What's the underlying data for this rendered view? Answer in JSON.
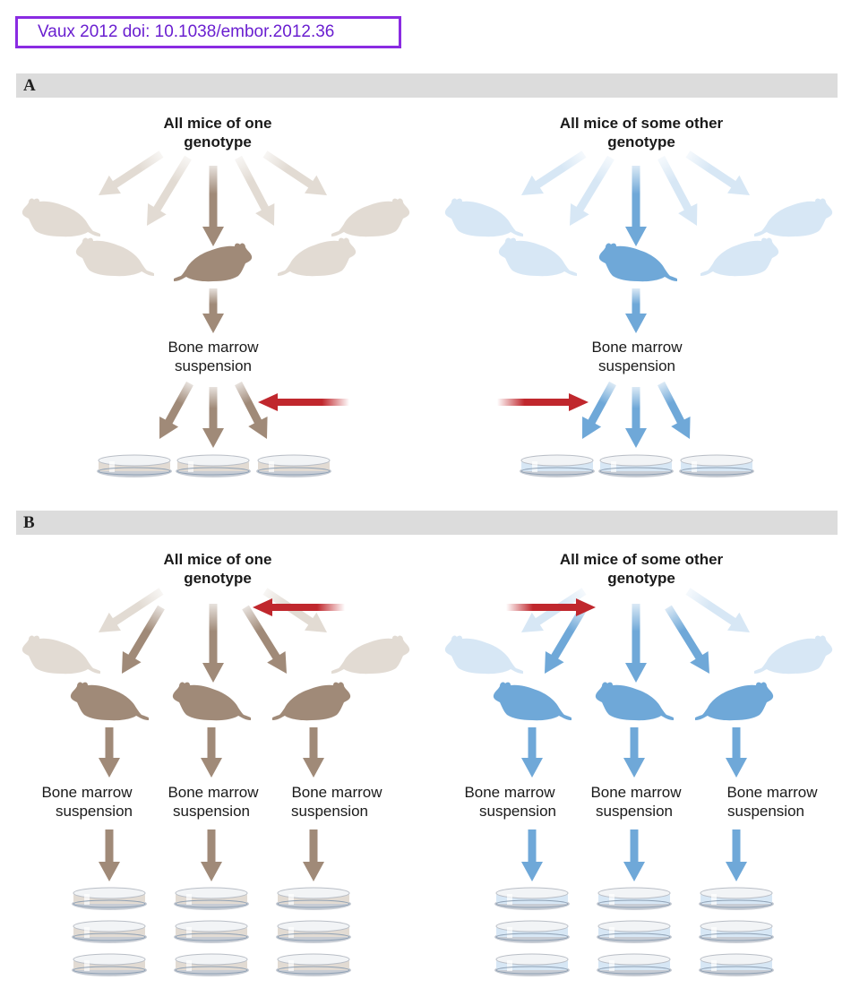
{
  "citation": "Vaux 2012 doi: 10.1038/embor.2012.36",
  "panels": [
    {
      "letter": "A",
      "left_header": [
        "All mice of one",
        "genotype"
      ],
      "right_header": [
        "All mice of some other",
        "genotype"
      ],
      "left_suspension": [
        "Bone marrow",
        "suspension"
      ],
      "right_suspension": [
        "Bone marrow",
        "suspension"
      ]
    },
    {
      "letter": "B",
      "left_header": [
        "All mice of one",
        "genotype"
      ],
      "right_header": [
        "All mice of some other",
        "genotype"
      ],
      "left_suspensions": [
        [
          "Bone marrow",
          "suspension"
        ],
        [
          "Bone marrow",
          "suspension"
        ],
        [
          "Bone marrow",
          "suspension"
        ]
      ],
      "right_suspensions": [
        [
          "Bone marrow",
          "suspension"
        ],
        [
          "Bone marrow",
          "suspension"
        ],
        [
          "Bone marrow",
          "suspension"
        ]
      ]
    }
  ],
  "colors": {
    "brown": "#a08a78",
    "brown_light": "#e2dbd3",
    "blue": "#6fa8d8",
    "blue_light": "#d7e7f5",
    "red_arrow": "#c0272d",
    "panel_bar": "#dcdcdc",
    "citation_border": "#8a2be2"
  }
}
